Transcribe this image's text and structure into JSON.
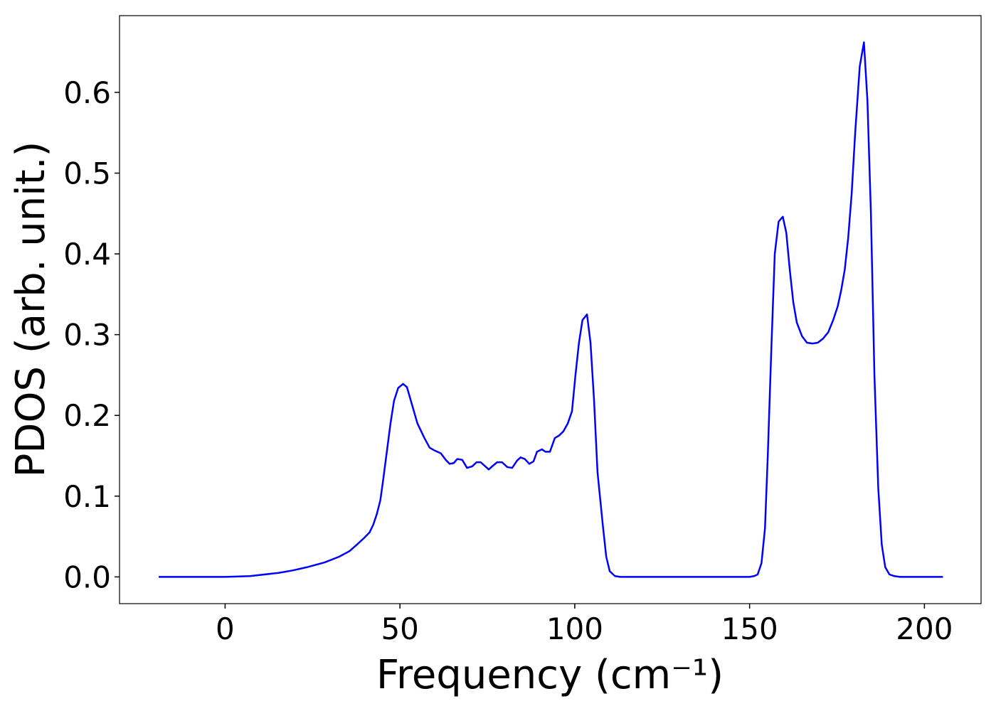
{
  "chart_data": {
    "type": "line",
    "x_label": "Frequency (cm⁻¹)",
    "y_label": "PDOS (arb. unit.)",
    "xlim": [
      -30.2,
      216.2
    ],
    "ylim": [
      -0.0331,
      0.695
    ],
    "xticks": [
      0,
      50,
      100,
      150,
      200
    ],
    "yticks": [
      {
        "value": 0,
        "label": "0.0"
      },
      0.1,
      0.2,
      0.3,
      0.4,
      0.5,
      0.6
    ],
    "series": [
      {
        "color": "#0000ff",
        "x": [
          -19,
          0,
          7.1,
          15.3,
          19.3,
          23.4,
          28.5,
          32.6,
          35.6,
          37.7,
          39.7,
          41.3,
          42.4,
          43.4,
          44.4,
          45.2,
          47.3,
          48.3,
          49.5,
          50.9,
          52,
          53,
          55,
          57,
          58.5,
          59.7,
          61.7,
          63.1,
          64.2,
          65.4,
          66.4,
          67.8,
          69.2,
          70.7,
          71.9,
          73.1,
          75.4,
          76.4,
          77.8,
          79.2,
          80.7,
          82.1,
          83.5,
          84.5,
          85.7,
          87,
          88.2,
          89.2,
          90.6,
          91.6,
          92.9,
          94.3,
          95.5,
          96.7,
          98,
          99.2,
          100.2,
          101.2,
          102.2,
          103.5,
          104.5,
          105.5,
          106.5,
          108,
          109,
          110,
          111.5,
          113,
          150,
          151.3,
          152.3,
          153.4,
          154.4,
          155.2,
          156.2,
          157.2,
          158.3,
          159.5,
          160.5,
          161.5,
          162.5,
          163.5,
          165,
          166.4,
          168,
          169.5,
          171,
          172.5,
          173.9,
          175.2,
          176.2,
          177.2,
          178.2,
          179.2,
          180.2,
          181.5,
          182.7,
          183.7,
          184.7,
          185.7,
          186.8,
          187.8,
          188.8,
          190,
          191.4,
          193,
          205.3
        ],
        "values": [
          0,
          0,
          0.001,
          0.005,
          0.008,
          0.012,
          0.018,
          0.025,
          0.032,
          0.04,
          0.048,
          0.055,
          0.065,
          0.078,
          0.095,
          0.12,
          0.19,
          0.218,
          0.234,
          0.239,
          0.235,
          0.22,
          0.19,
          0.172,
          0.16,
          0.157,
          0.153,
          0.145,
          0.14,
          0.141,
          0.146,
          0.145,
          0.135,
          0.137,
          0.142,
          0.142,
          0.133,
          0.137,
          0.142,
          0.142,
          0.136,
          0.135,
          0.144,
          0.148,
          0.146,
          0.14,
          0.143,
          0.155,
          0.158,
          0.155,
          0.155,
          0.172,
          0.175,
          0.18,
          0.19,
          0.205,
          0.25,
          0.29,
          0.318,
          0.325,
          0.29,
          0.22,
          0.13,
          0.065,
          0.025,
          0.007,
          0.001,
          0,
          0,
          0.001,
          0.003,
          0.017,
          0.06,
          0.15,
          0.28,
          0.4,
          0.44,
          0.446,
          0.426,
          0.38,
          0.34,
          0.315,
          0.298,
          0.29,
          0.289,
          0.29,
          0.295,
          0.303,
          0.318,
          0.335,
          0.355,
          0.38,
          0.42,
          0.475,
          0.55,
          0.632,
          0.662,
          0.59,
          0.45,
          0.25,
          0.11,
          0.04,
          0.012,
          0.003,
          0.001,
          0,
          0
        ]
      }
    ]
  }
}
